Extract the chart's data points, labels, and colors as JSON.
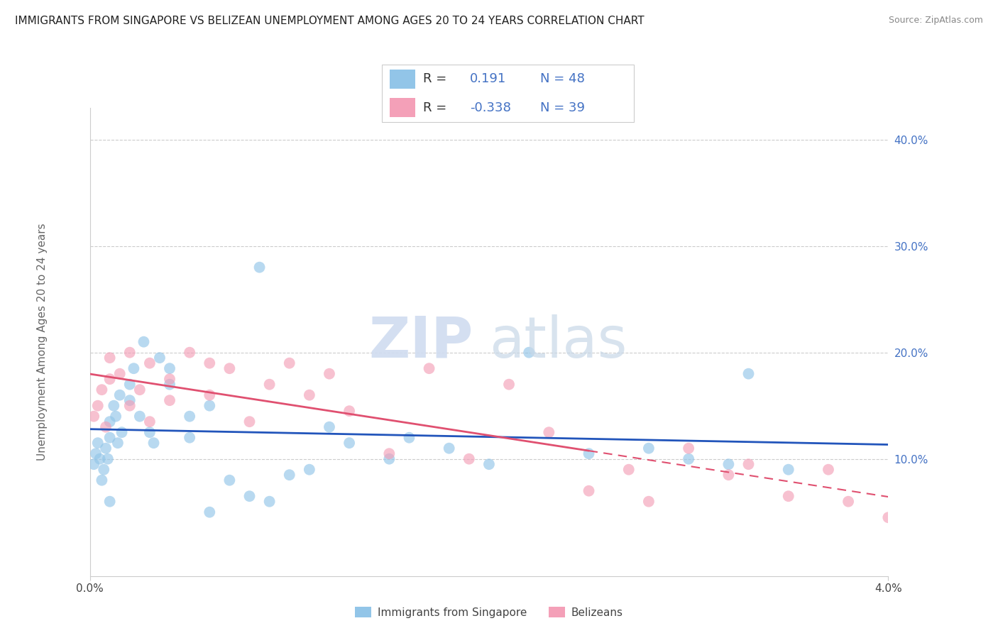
{
  "title": "IMMIGRANTS FROM SINGAPORE VS BELIZEAN UNEMPLOYMENT AMONG AGES 20 TO 24 YEARS CORRELATION CHART",
  "source": "Source: ZipAtlas.com",
  "ylabel": "Unemployment Among Ages 20 to 24 years",
  "y_ticks_right": [
    "10.0%",
    "20.0%",
    "30.0%",
    "40.0%"
  ],
  "y_tick_values": [
    0.1,
    0.2,
    0.3,
    0.4
  ],
  "x_lim": [
    0.0,
    0.04
  ],
  "y_lim": [
    -0.01,
    0.43
  ],
  "blue_color": "#92C5E8",
  "pink_color": "#F4A0B8",
  "trend_blue": "#2255BB",
  "trend_pink": "#E05070",
  "title_fontsize": 11,
  "blue_scatter_x": [
    0.0002,
    0.0003,
    0.0004,
    0.0005,
    0.0006,
    0.0007,
    0.0008,
    0.0009,
    0.001,
    0.001,
    0.0012,
    0.0013,
    0.0014,
    0.0015,
    0.0016,
    0.002,
    0.002,
    0.0022,
    0.0025,
    0.0027,
    0.003,
    0.0032,
    0.0035,
    0.004,
    0.004,
    0.005,
    0.005,
    0.006,
    0.006,
    0.007,
    0.008,
    0.009,
    0.0085,
    0.01,
    0.011,
    0.012,
    0.013,
    0.015,
    0.016,
    0.018,
    0.02,
    0.022,
    0.025,
    0.028,
    0.03,
    0.032,
    0.033,
    0.035,
    0.001
  ],
  "blue_scatter_y": [
    0.095,
    0.105,
    0.115,
    0.1,
    0.08,
    0.09,
    0.11,
    0.1,
    0.12,
    0.135,
    0.15,
    0.14,
    0.115,
    0.16,
    0.125,
    0.17,
    0.155,
    0.185,
    0.14,
    0.21,
    0.125,
    0.115,
    0.195,
    0.17,
    0.185,
    0.14,
    0.12,
    0.15,
    0.05,
    0.08,
    0.065,
    0.06,
    0.28,
    0.085,
    0.09,
    0.13,
    0.115,
    0.1,
    0.12,
    0.11,
    0.095,
    0.2,
    0.105,
    0.11,
    0.1,
    0.095,
    0.18,
    0.09,
    0.06
  ],
  "pink_scatter_x": [
    0.0002,
    0.0004,
    0.0006,
    0.0008,
    0.001,
    0.001,
    0.0015,
    0.002,
    0.002,
    0.0025,
    0.003,
    0.003,
    0.004,
    0.004,
    0.005,
    0.006,
    0.006,
    0.007,
    0.008,
    0.009,
    0.01,
    0.011,
    0.012,
    0.013,
    0.015,
    0.017,
    0.019,
    0.021,
    0.023,
    0.025,
    0.027,
    0.028,
    0.03,
    0.032,
    0.033,
    0.035,
    0.037,
    0.038,
    0.04
  ],
  "pink_scatter_y": [
    0.14,
    0.15,
    0.165,
    0.13,
    0.175,
    0.195,
    0.18,
    0.15,
    0.2,
    0.165,
    0.19,
    0.135,
    0.175,
    0.155,
    0.2,
    0.19,
    0.16,
    0.185,
    0.135,
    0.17,
    0.19,
    0.16,
    0.18,
    0.145,
    0.105,
    0.185,
    0.1,
    0.17,
    0.125,
    0.07,
    0.09,
    0.06,
    0.11,
    0.085,
    0.095,
    0.065,
    0.09,
    0.06,
    0.045
  ]
}
